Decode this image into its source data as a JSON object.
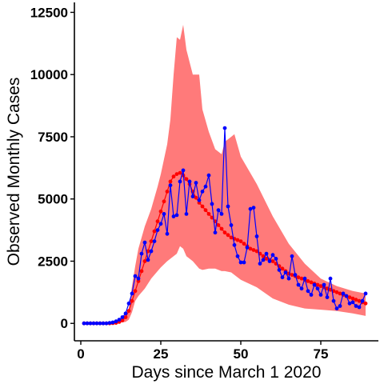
{
  "chart_data": {
    "type": "line",
    "xlabel": "Days since March 1 2020",
    "ylabel": "Observed Monthly Cases",
    "xlim": [
      -2,
      93
    ],
    "ylim": [
      -700,
      12900
    ],
    "x_ticks": [
      0,
      25,
      50,
      75
    ],
    "y_ticks": [
      0,
      2500,
      5000,
      7500,
      10000,
      12500
    ],
    "x_tick_labels": [
      "0",
      "25",
      "50",
      "75"
    ],
    "y_tick_labels": [
      "0",
      "2500",
      "5000",
      "7500",
      "10000",
      "12500"
    ],
    "grid": false,
    "legend": "none",
    "colors": {
      "band": "#ff7a7a",
      "fitted": "#ff0000",
      "observed": "#0000ff"
    },
    "band": {
      "x": [
        1,
        5,
        10,
        12,
        14,
        15,
        16,
        17,
        18,
        20,
        22,
        24,
        25,
        27,
        28,
        29,
        30,
        31,
        32,
        33,
        35,
        37,
        38,
        40,
        42,
        44,
        45,
        47,
        48,
        50,
        55,
        60,
        65,
        70,
        75,
        80,
        85,
        89
      ],
      "upper": [
        0,
        0,
        20,
        80,
        250,
        600,
        1500,
        2300,
        3000,
        3900,
        4600,
        5500,
        6000,
        7200,
        8200,
        10000,
        11500,
        11400,
        12000,
        11000,
        10000,
        10000,
        8600,
        7700,
        7000,
        6800,
        7300,
        7500,
        7600,
        6700,
        5600,
        4300,
        3200,
        2400,
        1800,
        1500,
        1300,
        1200
      ],
      "lower": [
        0,
        0,
        0,
        20,
        60,
        150,
        450,
        900,
        1100,
        1400,
        1800,
        2100,
        2250,
        2500,
        2600,
        2700,
        2800,
        3100,
        3000,
        2700,
        2500,
        2200,
        2150,
        2200,
        2200,
        2100,
        2100,
        2050,
        1950,
        1750,
        1450,
        1000,
        750,
        600,
        550,
        500,
        400,
        300
      ]
    },
    "series": [
      {
        "x": [
          1,
          2,
          3,
          4,
          5,
          6,
          7,
          8,
          9,
          10,
          11,
          12,
          13,
          14,
          15,
          16,
          17,
          18,
          19,
          20,
          21,
          22,
          23,
          24,
          25,
          26,
          27,
          28,
          29,
          30,
          31,
          32,
          33,
          34,
          35,
          36,
          37,
          38,
          39,
          40,
          41,
          42,
          43,
          44,
          45,
          46,
          47,
          48,
          49,
          50,
          51,
          52,
          53,
          54,
          55,
          56,
          57,
          58,
          59,
          60,
          61,
          62,
          63,
          64,
          65,
          66,
          67,
          68,
          69,
          70,
          71,
          72,
          73,
          74,
          75,
          76,
          77,
          78,
          79,
          80,
          81,
          82,
          83,
          84,
          85,
          86,
          87,
          88,
          89
        ],
        "values": [
          0,
          0,
          0,
          0,
          0,
          0,
          0,
          0,
          0,
          10,
          20,
          60,
          120,
          250,
          500,
          900,
          1300,
          1700,
          2100,
          2500,
          2900,
          3300,
          3700,
          4100,
          4500,
          4900,
          5300,
          5700,
          5900,
          6000,
          6050,
          5950,
          5800,
          5600,
          5300,
          5050,
          4850,
          4700,
          4550,
          4400,
          4250,
          4100,
          3950,
          3800,
          3650,
          3550,
          3450,
          3400,
          3350,
          3300,
          3200,
          3100,
          3000,
          2950,
          2900,
          2800,
          2700,
          2600,
          2550,
          2500,
          2400,
          2300,
          2200,
          2100,
          2000,
          1950,
          1900,
          1850,
          1800,
          1750,
          1700,
          1650,
          1600,
          1550,
          1500,
          1450,
          1400,
          1350,
          1300,
          1250,
          1200,
          1150,
          1100,
          1050,
          1000,
          950,
          900,
          850,
          800
        ]
      },
      {
        "x": [
          1,
          2,
          3,
          4,
          5,
          6,
          7,
          8,
          9,
          10,
          11,
          12,
          13,
          14,
          15,
          16,
          17,
          18,
          19,
          20,
          21,
          22,
          23,
          24,
          25,
          26,
          27,
          28,
          29,
          30,
          31,
          32,
          33,
          34,
          35,
          36,
          37,
          38,
          39,
          40,
          41,
          42,
          43,
          44,
          45,
          46,
          47,
          48,
          49,
          50,
          51,
          52,
          53,
          54,
          55,
          56,
          57,
          58,
          59,
          60,
          61,
          62,
          63,
          64,
          65,
          66,
          67,
          68,
          69,
          70,
          71,
          72,
          73,
          74,
          75,
          76,
          77,
          78,
          79,
          80,
          81,
          82,
          83,
          84,
          85,
          86,
          87,
          88,
          89
        ],
        "values": [
          0,
          0,
          0,
          0,
          0,
          0,
          0,
          0,
          20,
          40,
          80,
          150,
          250,
          400,
          800,
          1200,
          1900,
          1800,
          2800,
          3250,
          2550,
          2900,
          3300,
          3750,
          4000,
          4400,
          3600,
          5550,
          4300,
          4350,
          5700,
          6150,
          4400,
          5700,
          5100,
          5650,
          4950,
          5300,
          5500,
          5950,
          4800,
          3650,
          4550,
          4400,
          7850,
          4700,
          3950,
          3150,
          2700,
          2450,
          2450,
          3050,
          4600,
          4650,
          3500,
          2400,
          2550,
          2800,
          2500,
          2750,
          2600,
          2150,
          1850,
          2050,
          1800,
          2700,
          1950,
          1550,
          1400,
          1800,
          1300,
          1150,
          1550,
          1400,
          1150,
          1550,
          1050,
          1800,
          900,
          600,
          700,
          1200,
          1100,
          800,
          850,
          700,
          650,
          900,
          1200
        ]
      }
    ]
  }
}
